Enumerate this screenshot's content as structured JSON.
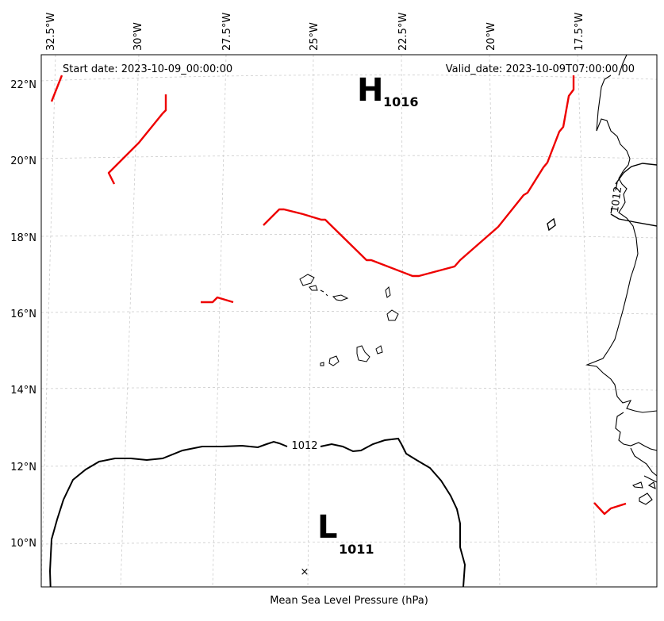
{
  "header": {
    "start_date": "Start date: 2023-10-09_00:00:00",
    "valid_date": "Valid_date: 2023-10-09T07:00:00.00"
  },
  "axis": {
    "xlabel": "Mean Sea Level Pressure (hPa)",
    "lon_ticks": [
      "32.5°W",
      "30°W",
      "27.5°W",
      "25°W",
      "22.5°W",
      "20°W",
      "17.5°W"
    ],
    "lat_ticks": [
      "22°N",
      "20°N",
      "18°N",
      "16°N",
      "14°N",
      "12°N",
      "10°N"
    ]
  },
  "contours": {
    "label_1012_south": "1012",
    "label_1012_coast": "1012"
  },
  "pressure_centers": {
    "high_letter": "H",
    "high_value": "1016",
    "low_letter": "L",
    "low_value": "1011",
    "low_center_marker": "×"
  },
  "colors": {
    "front": "#ee0000",
    "isobar": "#000000",
    "grid": "#cccccc"
  }
}
